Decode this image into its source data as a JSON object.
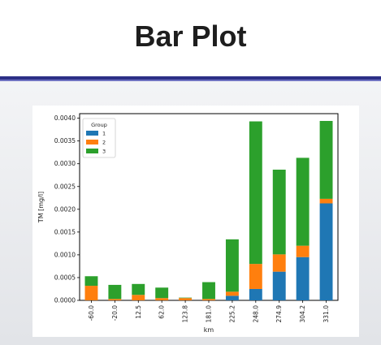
{
  "slide": {
    "title": "Bar Plot"
  },
  "chart_data": {
    "type": "bar",
    "stacked": true,
    "categories": [
      "-60.0",
      "-20.0",
      "12.5",
      "62.0",
      "123.8",
      "181.0",
      "225.2",
      "248.0",
      "274.9",
      "304.2",
      "331.0"
    ],
    "series": [
      {
        "name": "1",
        "color": "#1f77b4",
        "values": [
          0.0,
          0.0,
          0.0,
          0.0,
          0.0,
          0.0,
          0.0001,
          0.00025,
          0.00063,
          0.00095,
          0.00213
        ]
      },
      {
        "name": "2",
        "color": "#ff7f0e",
        "values": [
          0.00032,
          3e-05,
          0.00012,
          5e-05,
          5e-05,
          3e-05,
          9e-05,
          0.00055,
          0.00038,
          0.00025,
          0.0001
        ]
      },
      {
        "name": "3",
        "color": "#2ca02c",
        "values": [
          0.00021,
          0.00031,
          0.00024,
          0.00023,
          1e-05,
          0.00037,
          0.00115,
          0.00313,
          0.00186,
          0.00193,
          0.00171
        ]
      }
    ],
    "xlabel": "km",
    "ylabel": "TM [mg/l]",
    "ylim": [
      0,
      0.0041
    ],
    "yticks": [
      "0.0000",
      "0.0005",
      "0.0010",
      "0.0015",
      "0.0020",
      "0.0025",
      "0.0030",
      "0.0035",
      "0.0040"
    ],
    "ytick_values": [
      0,
      0.0005,
      0.001,
      0.0015,
      0.002,
      0.0025,
      0.003,
      0.0035,
      0.004
    ],
    "legend": {
      "title": "Group",
      "position": "top-left"
    },
    "grid": false
  }
}
